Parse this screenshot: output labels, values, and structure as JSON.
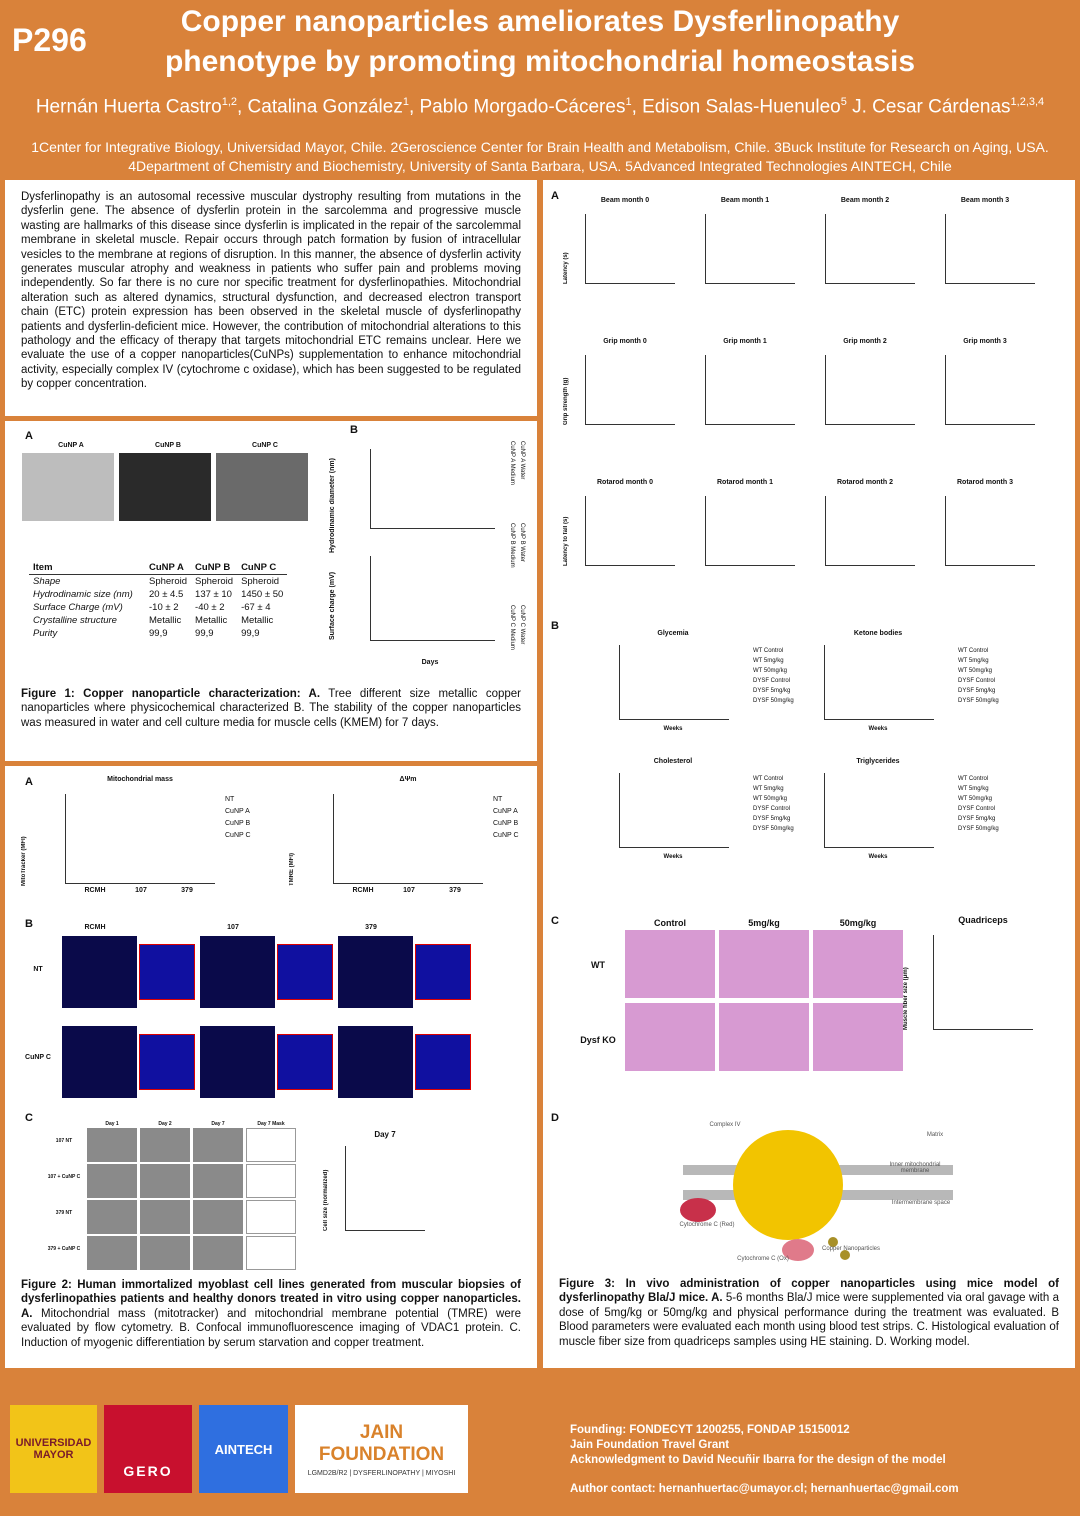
{
  "header": {
    "code": "P296",
    "title_lines": [
      "Copper nanoparticles ameliorates Dysferlinopathy",
      "phenotype by promoting mitochondrial homeostasis"
    ],
    "authors": [
      {
        "name": "Hernán Huerta Castro",
        "sup": "1,2"
      },
      {
        "name": ", Catalina González",
        "sup": "1"
      },
      {
        "name": ", Pablo Morgado-Cáceres",
        "sup": "1"
      },
      {
        "name": ", Edison Salas-Huenuleo",
        "sup": "5"
      },
      {
        "name": " J. Cesar Cárdenas",
        "sup": "1,2,3,4"
      }
    ],
    "affiliations": [
      "1Center for Integrative Biology, Universidad Mayor, Chile. 2Geroscience Center for Brain Health and Metabolism, Chile. 3Buck Institute for Research on Aging, USA.",
      "4Department of Chemistry and Biochemistry, University of Santa Barbara, USA. 5Advanced Integrated Technologies AINTECH, Chile"
    ]
  },
  "abstract": "Dysferlinopathy is an autosomal recessive muscular dystrophy resulting from mutations in the dysferlin gene. The absence of dysferlin protein in the sarcolemma and progressive muscle wasting are hallmarks of this disease since dysferlin is implicated in the repair of the sarcolemmal membrane in skeletal muscle. Repair occurs through patch formation by fusion of intracellular vesicles to the membrane at regions of disruption. In this manner, the absence of dysferlin activity generates muscular atrophy and weakness in patients who suffer pain and problems moving independently. So far there is no cure nor specific treatment for dysferlinopathies. Mitochondrial alteration such as altered dynamics, structural dysfunction, and decreased electron transport chain (ETC) protein expression has been observed in the skeletal muscle of dysferlinopathy patients and dysferlin-deficient mice. However, the contribution of mitochondrial alterations to this pathology and the efficacy of therapy that targets mitochondrial ETC remains unclear. Here we evaluate the use of a copper nanoparticles(CuNPs) supplementation to enhance mitochondrial activity, especially complex IV (cytochrome c oxidase), which has been suggested to be regulated by copper concentration.",
  "figure1": {
    "panel_a": "A",
    "panel_b": "B",
    "image_labels": [
      "CuNP A",
      "CuNP B",
      "CuNP C"
    ],
    "table": {
      "header": [
        "Item",
        "CuNP A",
        "CuNP B",
        "CuNP C"
      ],
      "rows": [
        [
          "Shape",
          "Spheroid",
          "Spheroid",
          "Spheroid"
        ],
        [
          "Hydrodinamic size (nm)",
          "20 ± 4.5",
          "137 ± 10",
          "1450 ± 50"
        ],
        [
          "Surface Charge (mV)",
          "-10 ± 2",
          "-40 ± 2",
          "-67 ± 4"
        ],
        [
          "Crystalline structure",
          "Metallic",
          "Metallic",
          "Metallic"
        ],
        [
          "Purity",
          "99,9",
          "99,9",
          "99,9"
        ]
      ]
    },
    "axis_top": "Hydrodinamic diameter (nm)",
    "axis_bottom": "Surface charge (mV)",
    "axis_x": "Days",
    "legend": [
      "CuNP A Medium",
      "CuNP A Water",
      "CuNP B Medium",
      "CuNP B Water",
      "CuNP C Medium",
      "CuNP C Water"
    ],
    "caption_bold": "Figure 1: Copper nanoparticle characterization: A.",
    "caption": " Tree different size metallic copper nanoparticles where physicochemical characterized B. The stability of the copper nanoparticles was measured in water and cell culture media for muscle cells (KMEM) for 7 days."
  },
  "figure2": {
    "panel_a": "A",
    "panel_b": "B",
    "panel_c": "C",
    "chart_titles": [
      "Mitochondrial mass",
      "ΔΨm"
    ],
    "y_labels": [
      "MitoTracker (MFI)",
      "TMRE (MFI)"
    ],
    "groups": [
      "RCMH",
      "107",
      "379"
    ],
    "legend": [
      "NT",
      "CuNP A",
      "CuNP B",
      "CuNP C"
    ],
    "confocal_cols": [
      "RCMH",
      "107",
      "379"
    ],
    "confocal_rows": [
      "NT",
      "CuNP C"
    ],
    "day_cols": [
      "Day 1",
      "Day 2",
      "Day 7",
      "Day 7 Mask"
    ],
    "day_rows": [
      "107 NT",
      "107 + CuNP C",
      "379 NT",
      "379 + CuNP C"
    ],
    "day7_title": "Day 7",
    "day7_ylabel": "Cell size (normalized)",
    "caption_bold": "Figure 2: Human immortalized myoblast cell lines generated from muscular biopsies of dysferlinopathies patients and healthy donors treated in vitro using copper nanoparticles. A.",
    "caption": " Mitochondrial mass (mitotracker) and mitochondrial membrane potential (TMRE) were evaluated by flow cytometry. B. Confocal immunofluorescence imaging of VDAC1 protein. C. Induction of myogenic differentiation by serum starvation and copper treatment."
  },
  "figure3": {
    "panel_a": "A",
    "panel_b": "B",
    "panel_c": "C",
    "panel_d": "D",
    "a_titles": [
      "Beam month 0",
      "Beam month 1",
      "Beam month 2",
      "Beam month 3",
      "Grip month 0",
      "Grip month 1",
      "Grip month 2",
      "Grip month 3",
      "Rotarod month 0",
      "Rotarod month 1",
      "Rotarod month 2",
      "Rotarod month 3"
    ],
    "a_ylabels": [
      "Latency (s)",
      "Grip strength (g)",
      "Latency to fall (s)"
    ],
    "b_titles": [
      "Glycemia",
      "Ketone bodies",
      "Cholesterol",
      "Triglycerides"
    ],
    "b_xlabel": "Weeks",
    "groups": [
      "WT Control",
      "WT 5mg/kg",
      "WT 50mg/kg",
      "DYSF Control",
      "DYSF 5mg/kg",
      "DYSF 50mg/kg"
    ],
    "c_cols": [
      "Control",
      "5mg/kg",
      "50mg/kg"
    ],
    "c_rows": [
      "WT",
      "Dysf KO"
    ],
    "c_chart_title": "Quadriceps",
    "c_ylabel": "Muscle fiber size (μm)",
    "d_labels": [
      "Complex IV",
      "Matrix",
      "Inner mitochondrial membrane",
      "Intermembrane space",
      "Cytochrome C (Red)",
      "Cytochrome C (Ox)",
      "Copper Nanoparticles"
    ],
    "caption_bold": "Figure 3: In vivo administration of copper nanoparticles using mice model of dysferlinopathy Bla/J mice. A.",
    "caption": " 5-6 months Bla/J mice were supplemented via oral gavage with a dose of 5mg/kg or 50mg/kg and physical performance during the treatment was evaluated. B Blood parameters were evaluated each month using blood test strips. C. Histological evaluation of muscle fiber size from quadriceps samples using HE staining. D. Working model."
  },
  "footer": {
    "logos": [
      "UNIVERSIDAD MAYOR",
      "GERO",
      "AINTECH",
      "JAIN FOUNDATION",
      "LGMD2B/R2 | DYSFERLINOPATHY | MIYOSHI"
    ],
    "funding": [
      "Founding: FONDECYT 1200255, FONDAP 15150012",
      "Jain Foundation Travel Grant",
      "Acknowledgment to David Necuñir Ibarra for the design of the model"
    ],
    "contact": "Author contact: hernanhuertac@umayor.cl; hernanhuertac@gmail.com"
  }
}
